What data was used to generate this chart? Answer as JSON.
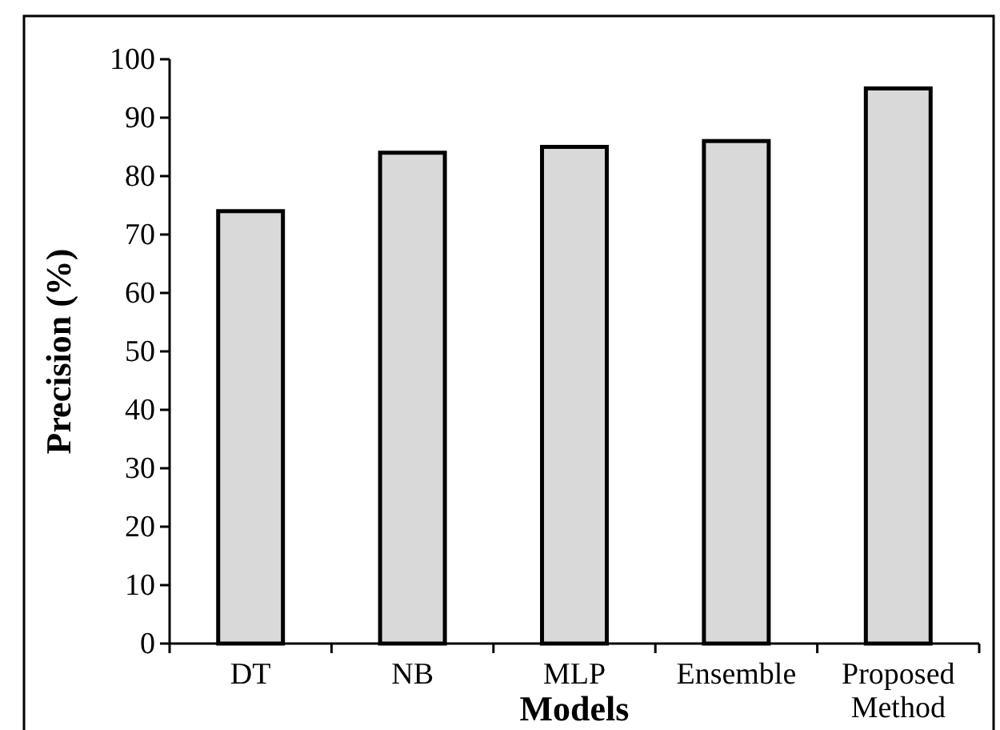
{
  "chart_data": {
    "type": "bar",
    "xlabel": "Models",
    "ylabel": "Precision (%)",
    "categories": [
      "DT",
      "NB",
      "MLP",
      "Ensemble",
      "Proposed Method"
    ],
    "values": [
      74,
      84,
      85,
      86,
      95
    ],
    "color": "#d9d9d9",
    "ylim": [
      0,
      100
    ],
    "yticks": [
      0,
      10,
      20,
      30,
      40,
      50,
      60,
      70,
      80,
      90,
      100
    ],
    "grid": false
  }
}
